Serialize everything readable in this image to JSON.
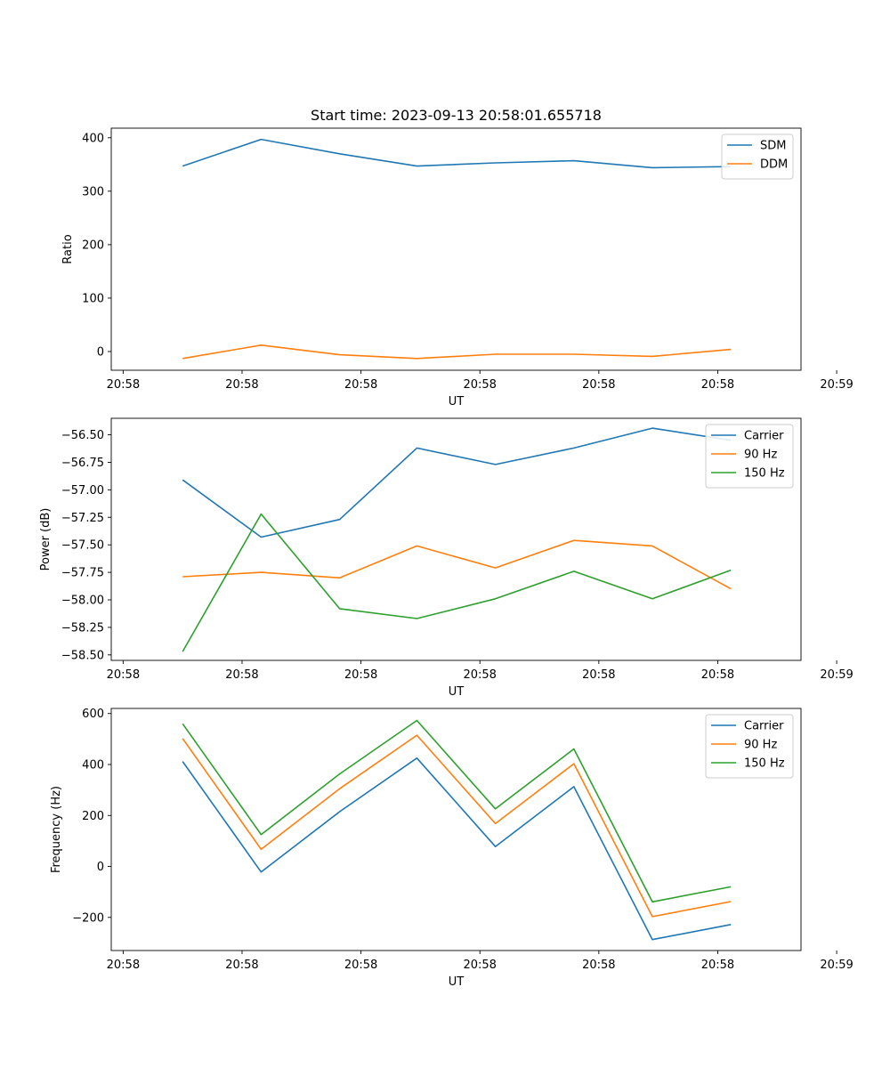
{
  "colors": {
    "c0": "#1f77b4",
    "c1": "#ff7f0e",
    "c2": "#2ca02c"
  },
  "chart_data": [
    {
      "type": "line",
      "name": "ratio",
      "title": "Start time: 2023-09-13 20:58:01.655718",
      "xlabel": "UT",
      "ylabel": "Ratio",
      "xlim": [
        -0.6,
        5.2
      ],
      "x": [
        0,
        0.66,
        1.32,
        1.97,
        2.63,
        3.29,
        3.95,
        4.61
      ],
      "xticks": [
        {
          "value": -0.5,
          "label": "20:58"
        },
        {
          "value": 0.5,
          "label": "20:58"
        },
        {
          "value": 1.5,
          "label": "20:58"
        },
        {
          "value": 2.5,
          "label": "20:58"
        },
        {
          "value": 3.5,
          "label": "20:58"
        },
        {
          "value": 4.5,
          "label": "20:58"
        },
        {
          "value": 5.5,
          "label": "20:59"
        }
      ],
      "ylim": [
        -35,
        418
      ],
      "yticks": [
        {
          "value": 0,
          "label": "0"
        },
        {
          "value": 100,
          "label": "100"
        },
        {
          "value": 200,
          "label": "200"
        },
        {
          "value": 300,
          "label": "300"
        },
        {
          "value": 400,
          "label": "400"
        }
      ],
      "legend": "top-right",
      "series": [
        {
          "name": "SDM",
          "color": "#1f77b4",
          "values": [
            347,
            397,
            370,
            347,
            353,
            357,
            344,
            346
          ]
        },
        {
          "name": "DDM",
          "color": "#ff7f0e",
          "values": [
            -13,
            12,
            -6,
            -13,
            -5,
            -5,
            -9,
            4
          ]
        }
      ]
    },
    {
      "type": "line",
      "name": "power",
      "title": "",
      "xlabel": "UT",
      "ylabel": "Power (dB)",
      "xlim": [
        -0.6,
        5.2
      ],
      "x": [
        0,
        0.66,
        1.32,
        1.97,
        2.63,
        3.29,
        3.95,
        4.61
      ],
      "xticks": [
        {
          "value": -0.5,
          "label": "20:58"
        },
        {
          "value": 0.5,
          "label": "20:58"
        },
        {
          "value": 1.5,
          "label": "20:58"
        },
        {
          "value": 2.5,
          "label": "20:58"
        },
        {
          "value": 3.5,
          "label": "20:58"
        },
        {
          "value": 4.5,
          "label": "20:58"
        },
        {
          "value": 5.5,
          "label": "20:59"
        }
      ],
      "ylim": [
        -58.55,
        -56.35
      ],
      "yticks": [
        {
          "value": -58.5,
          "label": "−58.50"
        },
        {
          "value": -58.25,
          "label": "−58.25"
        },
        {
          "value": -58.0,
          "label": "−58.00"
        },
        {
          "value": -57.75,
          "label": "−57.75"
        },
        {
          "value": -57.5,
          "label": "−57.50"
        },
        {
          "value": -57.25,
          "label": "−57.25"
        },
        {
          "value": -57.0,
          "label": "−57.00"
        },
        {
          "value": -56.75,
          "label": "−56.75"
        },
        {
          "value": -56.5,
          "label": "−56.50"
        }
      ],
      "legend": "top-right",
      "series": [
        {
          "name": "Carrier",
          "color": "#1f77b4",
          "values": [
            -56.91,
            -57.43,
            -57.27,
            -56.62,
            -56.77,
            -56.62,
            -56.44,
            -56.55
          ]
        },
        {
          "name": "90 Hz",
          "color": "#ff7f0e",
          "values": [
            -57.79,
            -57.75,
            -57.8,
            -57.51,
            -57.71,
            -57.46,
            -57.51,
            -57.9
          ]
        },
        {
          "name": "150 Hz",
          "color": "#2ca02c",
          "values": [
            -58.47,
            -57.22,
            -58.08,
            -58.17,
            -57.99,
            -57.74,
            -57.99,
            -57.73
          ]
        }
      ]
    },
    {
      "type": "line",
      "name": "frequency",
      "title": "",
      "xlabel": "UT",
      "ylabel": "Frequency (Hz)",
      "xlim": [
        -0.6,
        5.2
      ],
      "x": [
        0,
        0.66,
        1.32,
        1.97,
        2.63,
        3.29,
        3.95,
        4.61
      ],
      "xticks": [
        {
          "value": -0.5,
          "label": "20:58"
        },
        {
          "value": 0.5,
          "label": "20:58"
        },
        {
          "value": 1.5,
          "label": "20:58"
        },
        {
          "value": 2.5,
          "label": "20:58"
        },
        {
          "value": 3.5,
          "label": "20:58"
        },
        {
          "value": 4.5,
          "label": "20:58"
        },
        {
          "value": 5.5,
          "label": "20:59"
        }
      ],
      "ylim": [
        -330,
        620
      ],
      "yticks": [
        {
          "value": -200,
          "label": "−200"
        },
        {
          "value": 0,
          "label": "0"
        },
        {
          "value": 200,
          "label": "200"
        },
        {
          "value": 400,
          "label": "400"
        },
        {
          "value": 600,
          "label": "600"
        }
      ],
      "legend": "top-right",
      "series": [
        {
          "name": "Carrier",
          "color": "#1f77b4",
          "values": [
            412,
            -22,
            215,
            425,
            78,
            313,
            -287,
            -228
          ]
        },
        {
          "name": "90 Hz",
          "color": "#ff7f0e",
          "values": [
            502,
            67,
            305,
            515,
            168,
            403,
            -197,
            -138
          ]
        },
        {
          "name": "150 Hz",
          "color": "#2ca02c",
          "values": [
            560,
            125,
            363,
            573,
            226,
            461,
            -139,
            -80
          ]
        }
      ]
    }
  ]
}
